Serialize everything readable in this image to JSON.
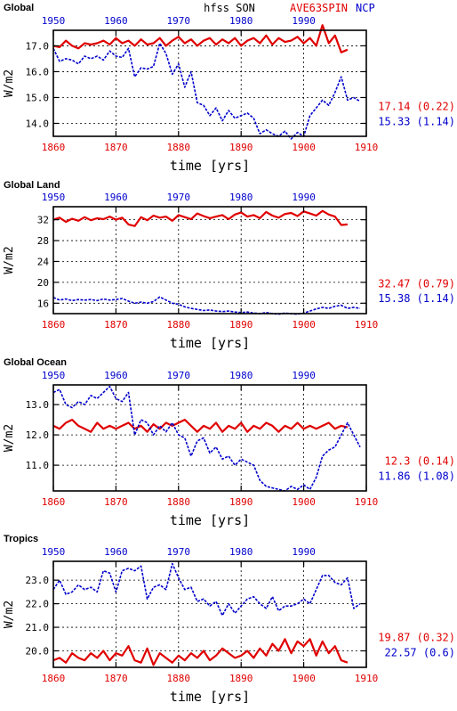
{
  "header": {
    "variable": "hfss SON",
    "model_a": "AVE63SPIN",
    "model_b": "NCP",
    "color_a": "#e00000",
    "color_b": "#0000cc"
  },
  "chart_data": [
    {
      "type": "line",
      "title": "Global",
      "ylabel": "W/m2",
      "xlabel": "time [yrs]",
      "x_bottom_ticks": [
        "1860",
        "1870",
        "1880",
        "1890",
        "1900",
        "1910"
      ],
      "x_top_ticks": [
        "1950",
        "1960",
        "1970",
        "1980",
        "1990"
      ],
      "y_ticks": [
        "14.0",
        "15.0",
        "16.0",
        "17.0"
      ],
      "ylim": [
        13.5,
        17.6
      ],
      "grid": true,
      "series": [
        {
          "name": "AVE63SPIN",
          "color": "#e00000",
          "x_axis": "bottom",
          "x_start": 1860,
          "stat": "17.14 (0.22)",
          "values": [
            17.0,
            16.95,
            17.2,
            17.0,
            16.9,
            17.1,
            17.05,
            17.1,
            17.2,
            17.05,
            17.3,
            17.1,
            17.2,
            17.0,
            17.25,
            17.05,
            17.1,
            17.3,
            17.0,
            17.2,
            17.35,
            17.1,
            17.25,
            17.0,
            17.2,
            17.3,
            17.05,
            17.25,
            17.1,
            17.3,
            17.0,
            17.2,
            17.3,
            17.1,
            17.4,
            17.05,
            17.3,
            17.15,
            17.2,
            17.35,
            17.1,
            17.3,
            17.0,
            17.8,
            17.1,
            17.4,
            16.75,
            16.85
          ]
        },
        {
          "name": "NCP",
          "color": "#0000cc",
          "x_axis": "top",
          "x_start": 1950,
          "stat": "15.33 (1.14)",
          "values": [
            16.9,
            16.4,
            16.5,
            16.45,
            16.3,
            16.6,
            16.5,
            16.6,
            16.45,
            16.8,
            16.6,
            16.55,
            16.9,
            15.8,
            16.15,
            16.1,
            16.2,
            17.1,
            16.7,
            15.9,
            16.3,
            15.4,
            16.0,
            14.8,
            14.7,
            14.3,
            14.6,
            14.1,
            14.5,
            14.2,
            14.3,
            14.4,
            14.2,
            13.6,
            13.75,
            13.6,
            13.5,
            13.7,
            13.4,
            13.65,
            13.5,
            14.3,
            14.6,
            14.9,
            14.7,
            15.2,
            15.8,
            14.9,
            15.0,
            14.85
          ]
        }
      ]
    },
    {
      "type": "line",
      "title": "Global Land",
      "ylabel": "W/m2",
      "xlabel": "time [yrs]",
      "x_bottom_ticks": [
        "1860",
        "1870",
        "1880",
        "1890",
        "1900",
        "1910"
      ],
      "x_top_ticks": [
        "1950",
        "1960",
        "1970",
        "1980",
        "1990"
      ],
      "y_ticks": [
        "16",
        "20",
        "24",
        "28",
        "32"
      ],
      "ylim": [
        14,
        34.5
      ],
      "grid": true,
      "series": [
        {
          "name": "AVE63SPIN",
          "color": "#e00000",
          "x_axis": "bottom",
          "x_start": 1860,
          "stat": "32.47 (0.79)",
          "values": [
            32.0,
            32.4,
            31.6,
            32.2,
            31.8,
            32.5,
            31.9,
            32.3,
            32.1,
            32.6,
            32.0,
            32.4,
            31.1,
            30.8,
            32.5,
            31.9,
            32.8,
            32.4,
            32.6,
            31.8,
            32.9,
            32.5,
            32.1,
            33.2,
            32.7,
            32.3,
            32.6,
            32.9,
            32.1,
            33.0,
            33.4,
            32.6,
            32.9,
            32.3,
            33.5,
            32.8,
            32.4,
            33.1,
            33.3,
            32.7,
            33.6,
            33.2,
            32.8,
            33.7,
            33.0,
            32.6,
            31.0,
            31.1
          ]
        },
        {
          "name": "NCP",
          "color": "#0000cc",
          "x_axis": "top",
          "x_start": 1950,
          "stat": "15.38 (1.14)",
          "values": [
            17.1,
            16.6,
            16.8,
            16.5,
            16.7,
            16.6,
            16.7,
            16.5,
            16.8,
            16.6,
            16.7,
            16.9,
            16.4,
            16.0,
            16.2,
            16.0,
            16.3,
            17.2,
            16.6,
            16.0,
            15.8,
            15.3,
            15.0,
            14.8,
            14.6,
            14.7,
            14.5,
            14.4,
            14.5,
            14.3,
            14.2,
            14.3,
            14.1,
            14.0,
            14.2,
            14.0,
            13.9,
            14.1,
            14.0,
            13.9,
            14.1,
            14.5,
            14.9,
            15.2,
            15.0,
            15.4,
            15.6,
            15.0,
            15.2,
            15.0
          ]
        }
      ]
    },
    {
      "type": "line",
      "title": "Global Ocean",
      "ylabel": "W/m2",
      "xlabel": "time [yrs]",
      "x_bottom_ticks": [
        "1860",
        "1870",
        "1880",
        "1890",
        "1900",
        "1910"
      ],
      "x_top_ticks": [
        "1950",
        "1960",
        "1970",
        "1980",
        "1990"
      ],
      "y_ticks": [
        "11.0",
        "12.0",
        "13.0"
      ],
      "ylim": [
        10.15,
        13.65
      ],
      "grid": true,
      "series": [
        {
          "name": "AVE63SPIN",
          "color": "#e00000",
          "x_axis": "bottom",
          "x_start": 1860,
          "stat": "12.3 (0.14)",
          "values": [
            12.3,
            12.2,
            12.4,
            12.5,
            12.3,
            12.2,
            12.1,
            12.4,
            12.2,
            12.3,
            12.2,
            12.3,
            12.4,
            12.2,
            12.3,
            12.1,
            12.35,
            12.2,
            12.4,
            12.3,
            12.4,
            12.5,
            12.3,
            12.1,
            12.3,
            12.2,
            12.4,
            12.1,
            12.3,
            12.2,
            12.4,
            12.1,
            12.3,
            12.2,
            12.4,
            12.3,
            12.1,
            12.3,
            12.2,
            12.4,
            12.2,
            12.3,
            12.2,
            12.3,
            12.4,
            12.2,
            12.3,
            12.25
          ]
        },
        {
          "name": "NCP",
          "color": "#0000cc",
          "x_axis": "top",
          "x_start": 1950,
          "stat": "11.86 (1.08)",
          "values": [
            13.4,
            13.5,
            13.0,
            12.9,
            13.1,
            13.0,
            13.3,
            13.2,
            13.4,
            13.6,
            13.2,
            13.1,
            13.4,
            12.0,
            12.5,
            12.4,
            12.0,
            12.3,
            12.1,
            12.4,
            12.0,
            11.9,
            11.3,
            11.8,
            11.9,
            11.4,
            11.6,
            11.2,
            11.3,
            11.0,
            11.2,
            11.1,
            11.0,
            10.5,
            10.3,
            10.25,
            10.2,
            10.15,
            10.3,
            10.2,
            10.35,
            10.2,
            10.6,
            11.3,
            11.5,
            11.6,
            12.0,
            12.4,
            12.0,
            11.6
          ]
        }
      ]
    },
    {
      "type": "line",
      "title": "Tropics",
      "ylabel": "W/m2",
      "xlabel": "time [yrs]",
      "x_bottom_ticks": [
        "1860",
        "1870",
        "1880",
        "1890",
        "1900",
        "1910"
      ],
      "x_top_ticks": [
        "1950",
        "1960",
        "1970",
        "1980",
        "1990"
      ],
      "y_ticks": [
        "20.0",
        "21.0",
        "22.0",
        "23.0"
      ],
      "ylim": [
        19.3,
        23.8
      ],
      "grid": true,
      "series": [
        {
          "name": "AVE63SPIN",
          "color": "#e00000",
          "x_axis": "bottom",
          "x_start": 1860,
          "stat": "19.87 (0.32)",
          "values": [
            19.6,
            19.7,
            19.5,
            19.9,
            19.7,
            19.6,
            19.9,
            19.7,
            20.0,
            19.6,
            19.9,
            19.8,
            20.2,
            19.6,
            19.5,
            20.1,
            19.4,
            19.9,
            19.7,
            19.5,
            19.8,
            19.6,
            19.9,
            19.7,
            20.0,
            19.6,
            19.8,
            20.1,
            19.9,
            19.7,
            19.8,
            20.0,
            19.7,
            20.1,
            19.8,
            20.3,
            20.0,
            20.5,
            19.9,
            20.4,
            20.2,
            20.5,
            19.8,
            20.4,
            19.9,
            20.2,
            19.6,
            19.5
          ]
        },
        {
          "name": "NCP",
          "color": "#0000cc",
          "x_axis": "top",
          "x_start": 1950,
          "stat": "22.57 (0.6)",
          "values": [
            22.6,
            23.0,
            22.4,
            22.5,
            22.8,
            22.6,
            22.7,
            22.5,
            23.4,
            23.3,
            22.5,
            23.4,
            23.5,
            23.4,
            23.6,
            22.2,
            22.7,
            22.8,
            22.6,
            23.7,
            23.1,
            22.6,
            22.7,
            22.1,
            22.2,
            21.9,
            22.1,
            21.5,
            22.0,
            21.6,
            21.9,
            22.2,
            22.3,
            22.0,
            21.8,
            22.3,
            21.7,
            21.9,
            21.9,
            22.0,
            22.2,
            22.0,
            22.6,
            23.2,
            23.2,
            22.9,
            22.8,
            23.1,
            21.8,
            22.0
          ]
        }
      ]
    }
  ]
}
